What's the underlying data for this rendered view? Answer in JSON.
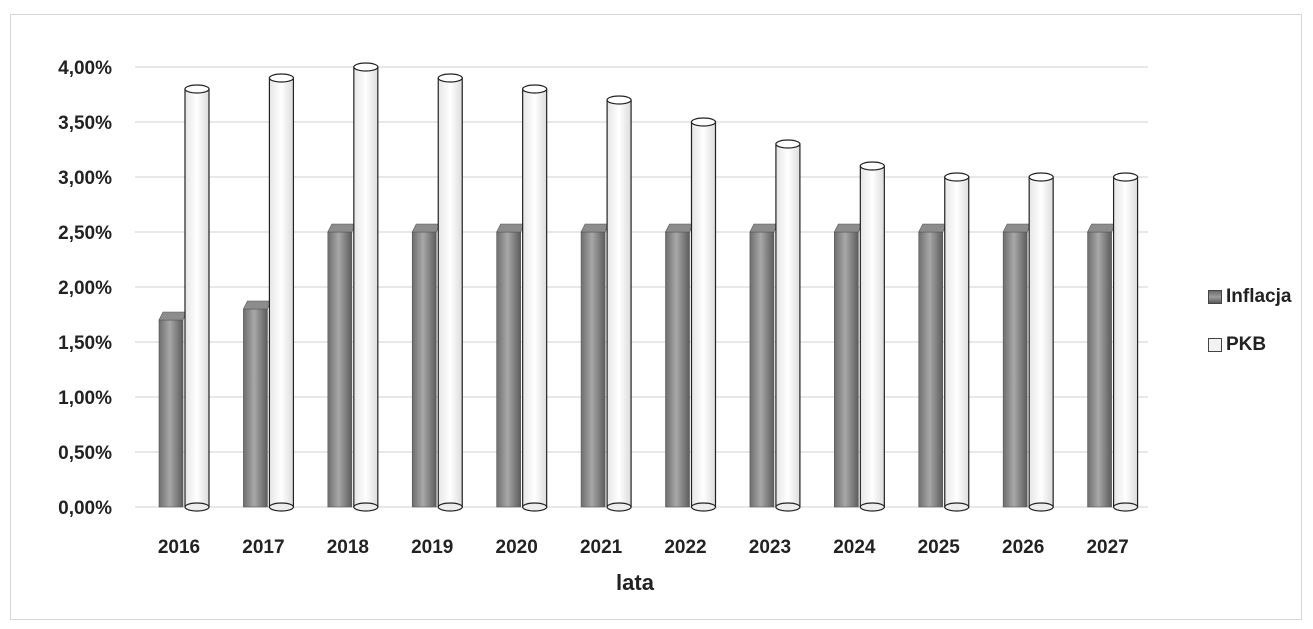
{
  "chart_data": {
    "type": "bar",
    "title": "",
    "xlabel": "lata",
    "ylabel": "",
    "categories": [
      "2016",
      "2017",
      "2018",
      "2019",
      "2020",
      "2021",
      "2022",
      "2023",
      "2024",
      "2025",
      "2026",
      "2027"
    ],
    "series": [
      {
        "name": "Inflacja",
        "values": [
          1.7,
          1.8,
          2.5,
          2.5,
          2.5,
          2.5,
          2.5,
          2.5,
          2.5,
          2.5,
          2.5,
          2.5
        ],
        "color": "#7f7f7f"
      },
      {
        "name": "PKB",
        "values": [
          3.8,
          3.9,
          4.0,
          3.9,
          3.8,
          3.7,
          3.5,
          3.3,
          3.1,
          3.0,
          3.0,
          3.0
        ],
        "color": "#f4f4f4"
      }
    ],
    "ylim": [
      0,
      4.0
    ],
    "yticks": [
      "0,00%",
      "0,50%",
      "1,00%",
      "1,50%",
      "2,00%",
      "2,50%",
      "3,00%",
      "3,50%",
      "4,00%"
    ],
    "grid": true,
    "legend_position": "right"
  }
}
